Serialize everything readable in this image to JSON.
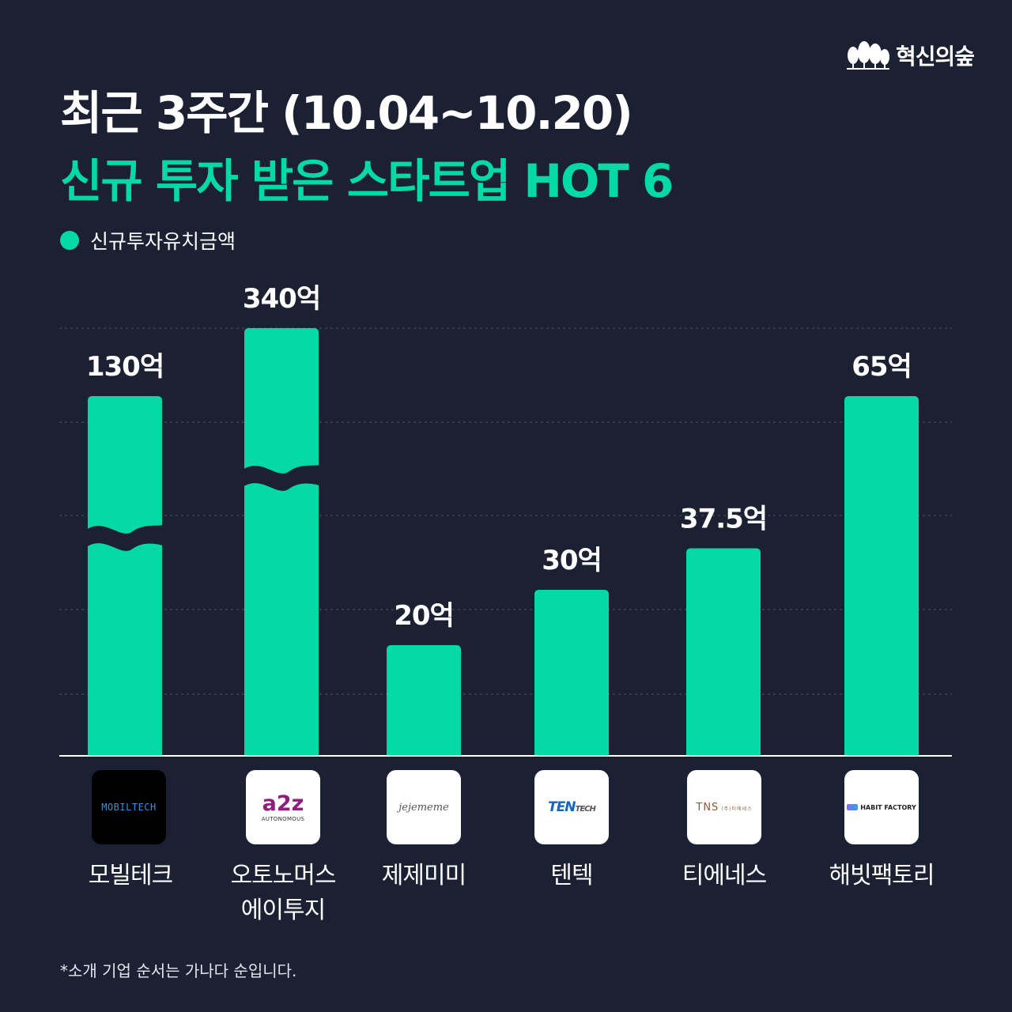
{
  "brand": {
    "name": "혁신의숲",
    "icon": "forest-trees-icon"
  },
  "header": {
    "line1": "최근 3주간 (10.04~10.20)",
    "line2": "신규 투자 받은 스타트업 HOT 6"
  },
  "colors": {
    "background": "#1c2033",
    "accent": "#03d9a5",
    "axis": "#ffffff",
    "grid": "#4a4f66"
  },
  "chart_data": {
    "type": "bar",
    "legend": [
      "신규투자유치금액"
    ],
    "legend_position": "top-left",
    "grid": true,
    "broken_axis_bars": [
      "모빌테크",
      "오토노머스에이투지"
    ],
    "categories": [
      "모빌테크",
      "오토노머스에이투지",
      "제제미미",
      "텐텍",
      "티에네스",
      "해빗팩토리"
    ],
    "series": [
      {
        "name": "신규투자유치금액",
        "values": [
          130,
          340,
          20,
          30,
          37.5,
          65
        ]
      }
    ],
    "data_labels": [
      "130억",
      "340억",
      "20억",
      "30억",
      "37.5억",
      "65억"
    ],
    "unit": "억"
  },
  "companies": [
    {
      "name_lines": [
        "모빌테크"
      ],
      "logo": {
        "text": "MOBILTECH"
      }
    },
    {
      "name_lines": [
        "오토노머스",
        "에이투지"
      ],
      "logo": {
        "text": "a2z",
        "sub": "AUTONOMOUS"
      }
    },
    {
      "name_lines": [
        "제제미미"
      ],
      "logo": {
        "text": "jejememe"
      }
    },
    {
      "name_lines": [
        "텐텍"
      ],
      "logo": {
        "text": "TEN",
        "sub": "TECH"
      }
    },
    {
      "name_lines": [
        "티에네스"
      ],
      "logo": {
        "text": "TNS",
        "sub": "(주)티에네스"
      }
    },
    {
      "name_lines": [
        "해빗팩토리"
      ],
      "logo": {
        "text": "HABIT FACTORY"
      }
    }
  ],
  "footnote": "*소개 기업 순서는 가나다 순입니다."
}
